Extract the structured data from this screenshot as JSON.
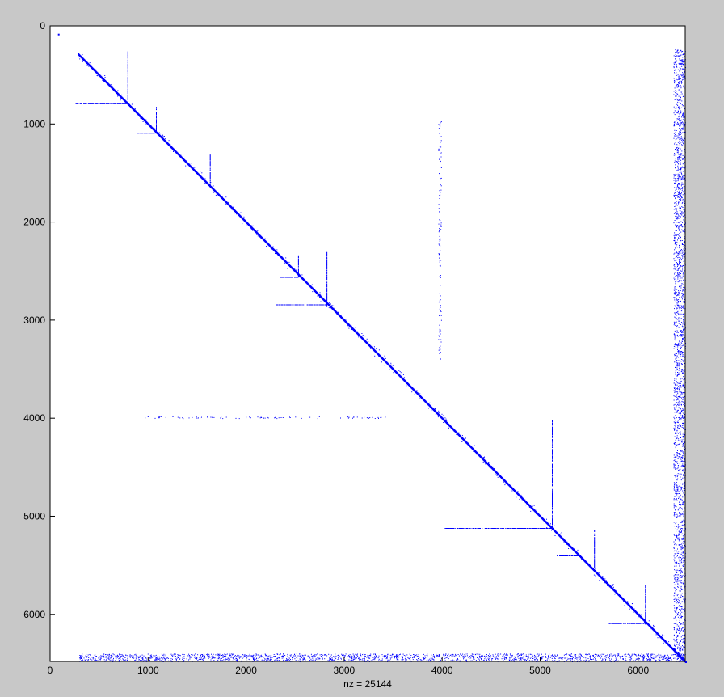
{
  "chart_data": {
    "type": "scatter",
    "title": "",
    "xlabel": "nz = 25144",
    "ylabel": "",
    "xlim": [
      0,
      6480
    ],
    "ylim": [
      6480,
      0
    ],
    "y_axis_reversed": true,
    "grid": false,
    "legend": "none",
    "marker_color": "#0000ff",
    "axes_background": "#ffffff",
    "figure_background": "#c8c8c8",
    "x_ticks": [
      0,
      1000,
      2000,
      3000,
      4000,
      5000,
      6000
    ],
    "y_ticks": [
      0,
      1000,
      2000,
      3000,
      4000,
      5000,
      6000
    ],
    "x_tick_labels": [
      "0",
      "1000",
      "2000",
      "3000",
      "4000",
      "5000",
      "6000"
    ],
    "y_tick_labels": [
      "0",
      "1000",
      "2000",
      "3000",
      "4000",
      "5000",
      "6000"
    ],
    "nz": 25144,
    "structure": {
      "main_diagonal": {
        "from": [
          280,
          280
        ],
        "to": [
          6480,
          6480
        ]
      },
      "isolated_points": [
        [
          80,
          80
        ]
      ],
      "bands": [
        {
          "x": [
            280,
            6480
          ],
          "y": [
            6400,
            6480
          ],
          "density": 0.65
        },
        {
          "x": [
            6360,
            6480
          ],
          "y": [
            240,
            6480
          ],
          "density": 0.55
        },
        {
          "x": [
            960,
            3420
          ],
          "y": [
            3980,
            4000
          ],
          "density": 0.25
        },
        {
          "x": [
            3960,
            3990
          ],
          "y": [
            950,
            3420
          ],
          "density": 0.25
        }
      ],
      "spikes": [
        {
          "x": 790,
          "y_from": 260,
          "y_to": 790
        },
        {
          "x": 1080,
          "y_from": 820,
          "y_to": 1090
        },
        {
          "x": 1630,
          "y_from": 1300,
          "y_to": 1650
        },
        {
          "x": 2530,
          "y_from": 2340,
          "y_to": 2560
        },
        {
          "x": 2820,
          "y_from": 2300,
          "y_to": 2860
        },
        {
          "x": 5120,
          "y_from": 4020,
          "y_to": 5140
        },
        {
          "x": 5550,
          "y_from": 5140,
          "y_to": 5560
        },
        {
          "x": 6070,
          "y_from": 5700,
          "y_to": 6100
        }
      ],
      "rows": [
        {
          "y": 790,
          "x_from": 260,
          "x_to": 790
        },
        {
          "y": 1090,
          "x_from": 880,
          "x_to": 1080
        },
        {
          "y": 2560,
          "x_from": 2340,
          "x_to": 2530
        },
        {
          "y": 2840,
          "x_from": 2300,
          "x_to": 2820
        },
        {
          "y": 5120,
          "x_from": 4020,
          "x_to": 5120
        },
        {
          "y": 5400,
          "x_from": 5170,
          "x_to": 5400
        },
        {
          "y": 6090,
          "x_from": 5700,
          "x_to": 6070
        }
      ]
    }
  }
}
